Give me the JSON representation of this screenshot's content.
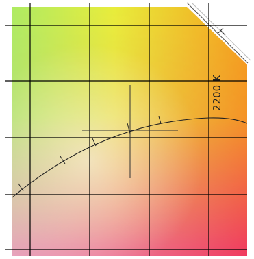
{
  "diagram": {
    "curve_label": "2200 K",
    "colors": {
      "top_left": "#a6ec66",
      "top_mid": "#e8ee3a",
      "top_right": "#f59f1a",
      "mid_right": "#f58a2a",
      "bottom_left": "#e9a8c4",
      "bottom_right": "#f0365f",
      "grid_line": "#000000",
      "curve_line": "#222222"
    }
  }
}
